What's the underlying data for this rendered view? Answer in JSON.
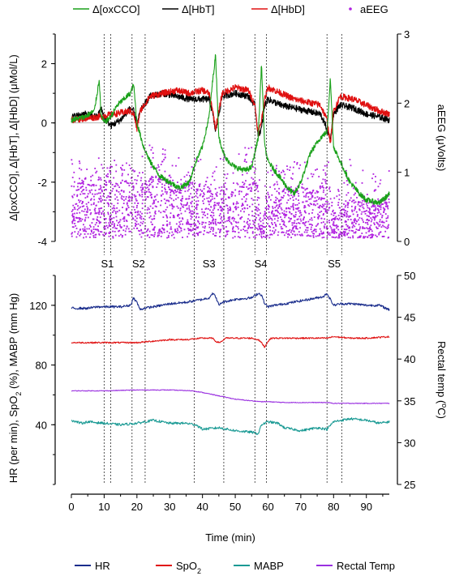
{
  "chart_data": [
    {
      "type": "line",
      "panel": "top",
      "ylabel": "Δ[oxCCO], Δ[HbT], Δ[HbD] (μMol/L)",
      "y2label": "aEEG (μVolts)",
      "ylim": [
        -4,
        3
      ],
      "yticks": [
        -4,
        -2,
        0,
        2
      ],
      "y2lim": [
        0,
        3
      ],
      "y2ticks": [
        0,
        1,
        2,
        3
      ],
      "xlim": [
        0,
        97
      ],
      "zero_line": true,
      "legend_position": "top",
      "legend": [
        {
          "label": "Δ[oxCCO]",
          "color": "#1aa11a",
          "marker": "line"
        },
        {
          "label": "Δ[HbT]",
          "color": "#000000",
          "marker": "line"
        },
        {
          "label": "Δ[HbD]",
          "color": "#e01010",
          "marker": "line"
        },
        {
          "label": "aEEG",
          "color": "#b020e0",
          "marker": "dot"
        }
      ],
      "series": [
        {
          "name": "Δ[oxCCO]",
          "color": "#1aa11a",
          "y_axis": "left",
          "x": [
            0,
            4,
            7,
            8,
            8.5,
            9,
            10,
            12,
            14,
            16,
            18,
            19,
            20,
            22,
            24,
            27,
            30,
            33,
            36,
            38,
            40,
            42,
            43,
            44,
            45,
            47,
            50,
            53,
            55,
            56,
            57,
            58,
            59,
            60,
            62,
            64,
            66,
            68,
            70,
            73,
            76,
            78,
            79,
            80,
            82,
            85,
            88,
            90,
            94,
            97
          ],
          "values": [
            0.1,
            0.2,
            0.4,
            1.1,
            1.5,
            0.3,
            0,
            0.2,
            0.6,
            0.8,
            1.0,
            1.3,
            0,
            -0.8,
            -1.3,
            -1.8,
            -2.0,
            -2.2,
            -2.0,
            -1.3,
            -0.8,
            0.2,
            1.3,
            2.3,
            -0.5,
            -1.2,
            -1.5,
            -1.6,
            -1.5,
            -1.0,
            -0.5,
            2.0,
            -0.8,
            -1.3,
            -1.6,
            -1.9,
            -2.2,
            -2.4,
            -2.0,
            -1.0,
            -0.5,
            -0.3,
            1.5,
            -0.8,
            -1.3,
            -2.0,
            -2.4,
            -2.6,
            -2.7,
            -2.4
          ]
        },
        {
          "name": "Δ[HbT]",
          "color": "#000000",
          "y_axis": "left",
          "x": [
            0,
            4,
            8,
            9,
            10,
            12,
            15,
            18,
            19,
            20,
            21,
            24,
            28,
            32,
            36,
            40,
            42,
            43,
            44,
            46,
            50,
            54,
            56,
            57,
            58,
            59,
            60,
            64,
            68,
            72,
            76,
            78,
            79,
            80,
            82,
            86,
            90,
            94,
            97
          ],
          "values": [
            0.2,
            0.3,
            0.2,
            0.5,
            0.2,
            -0.1,
            0.1,
            0.5,
            0.4,
            -0.1,
            0.4,
            0.9,
            1.0,
            0.9,
            0.8,
            0.8,
            0.8,
            0.4,
            -0.3,
            0.9,
            1.0,
            0.9,
            0.6,
            -0.4,
            -0.2,
            0.6,
            0.8,
            0.6,
            0.5,
            0.4,
            0.3,
            -0.2,
            -0.6,
            0.3,
            0.6,
            0.5,
            0.3,
            0.2,
            0.1
          ]
        },
        {
          "name": "Δ[HbD]",
          "color": "#e01010",
          "y_axis": "left",
          "x": [
            0,
            8,
            18,
            19,
            20,
            21,
            24,
            28,
            32,
            36,
            40,
            42,
            43,
            44,
            46,
            50,
            54,
            56,
            57,
            58,
            59,
            60,
            64,
            68,
            72,
            76,
            78,
            79,
            80,
            82,
            86,
            90,
            94,
            97
          ],
          "values": [
            0.1,
            0.2,
            0.4,
            0.3,
            -0.2,
            0.4,
            0.9,
            1.0,
            1.1,
            1.0,
            1.1,
            1.0,
            0.5,
            -0.2,
            1.0,
            1.2,
            1.1,
            0.6,
            -0.4,
            0.1,
            0.8,
            1.2,
            1.0,
            0.8,
            0.7,
            0.6,
            0.1,
            -0.7,
            0.4,
            0.9,
            0.8,
            0.6,
            0.4,
            0.3
          ]
        },
        {
          "name": "aEEG",
          "color": "#b020e0",
          "y_axis": "right",
          "style": "scatter",
          "band": {
            "x": [
              0,
              5,
              8,
              10,
              15,
              18,
              20,
              23,
              25,
              30,
              35,
              40,
              43,
              45,
              50,
              55,
              57,
              58,
              60,
              65,
              70,
              75,
              78,
              80,
              85,
              90,
              95,
              97
            ],
            "low": [
              0.05,
              0.05,
              0.05,
              0.05,
              0.05,
              0.1,
              0.05,
              0.05,
              0.05,
              0.05,
              0.05,
              0.1,
              0.1,
              0.05,
              0.05,
              0.05,
              0.05,
              0.05,
              0.05,
              0.05,
              0.05,
              0.05,
              0.05,
              0.05,
              0.05,
              0.05,
              0.05,
              0.05
            ],
            "high": [
              0.95,
              0.85,
              0.9,
              0.9,
              0.85,
              0.9,
              0.8,
              0.9,
              0.95,
              0.9,
              0.85,
              0.85,
              0.7,
              0.8,
              0.85,
              0.9,
              0.85,
              0.2,
              0.7,
              0.8,
              0.8,
              0.75,
              0.9,
              0.4,
              0.7,
              0.6,
              0.6,
              0.7
            ],
            "max": [
              1.3,
              1.1,
              1.2,
              1.3,
              1.1,
              1.2,
              1.0,
              1.5,
              1.4,
              1.3,
              1.2,
              1.3,
              1.0,
              1.2,
              1.3,
              1.4,
              1.3,
              0.5,
              1.1,
              1.1,
              1.2,
              1.1,
              1.3,
              0.6,
              1.2,
              1.0,
              1.0,
              1.1
            ]
          }
        }
      ]
    },
    {
      "type": "line",
      "panel": "bottom",
      "xlabel": "Time (min)",
      "xlim": [
        0,
        97
      ],
      "xticks": [
        0,
        10,
        20,
        30,
        40,
        50,
        60,
        70,
        80,
        90
      ],
      "ylabel_parts": [
        "HR (per min), SpO",
        "2",
        " (%), MABP (mm Hg)"
      ],
      "ylim": [
        0,
        140
      ],
      "yticks": [
        40,
        80,
        120
      ],
      "y2label_parts": [
        "Rectal temp (",
        "o",
        "C)"
      ],
      "y2lim": [
        25,
        50
      ],
      "y2ticks": [
        25,
        30,
        35,
        40,
        45,
        50
      ],
      "legend_position": "bottom",
      "legend": [
        {
          "label": "HR",
          "sub": "",
          "color": "#1a2d8c"
        },
        {
          "label": "SpO",
          "sub": "2",
          "color": "#e01010"
        },
        {
          "label": "MABP",
          "sub": "",
          "color": "#1a9a94"
        },
        {
          "label": "Rectal Temp",
          "sub": "",
          "color": "#9a30e0"
        }
      ],
      "series": [
        {
          "name": "HR",
          "color": "#1a2d8c",
          "y_axis": "left",
          "x": [
            0,
            5,
            8,
            10,
            15,
            18,
            19,
            20,
            21,
            22,
            25,
            30,
            35,
            40,
            42,
            43,
            44,
            45,
            46,
            48,
            50,
            55,
            57,
            58,
            59,
            60,
            62,
            65,
            70,
            75,
            77,
            78,
            79,
            80,
            82,
            86,
            90,
            94,
            97
          ],
          "values": [
            118,
            118,
            119,
            119,
            119,
            120,
            125,
            122,
            117,
            118,
            119,
            121,
            122,
            124,
            125,
            128,
            126,
            120,
            122,
            123,
            124,
            125,
            128,
            127,
            121,
            119,
            120,
            121,
            123,
            125,
            126,
            128,
            124,
            120,
            121,
            121,
            120,
            120,
            117
          ]
        },
        {
          "name": "SpO2",
          "color": "#e01010",
          "y_axis": "left",
          "x": [
            0,
            10,
            20,
            25,
            30,
            35,
            40,
            43,
            44,
            45,
            46,
            47,
            50,
            55,
            57,
            58,
            59,
            60,
            61,
            62,
            65,
            70,
            78,
            80,
            85,
            90,
            97
          ],
          "values": [
            95,
            95,
            95,
            96,
            97,
            97,
            98,
            98,
            96,
            95,
            96,
            98,
            98,
            98,
            97,
            95,
            92,
            96,
            98,
            98,
            98,
            98,
            98,
            99,
            98,
            98,
            99
          ]
        },
        {
          "name": "MABP",
          "color": "#1a9a94",
          "y_axis": "left",
          "x": [
            0,
            3,
            5,
            10,
            15,
            20,
            25,
            30,
            35,
            38,
            40,
            45,
            50,
            55,
            57,
            58,
            60,
            63,
            65,
            70,
            75,
            78,
            80,
            85,
            90,
            94,
            97
          ],
          "values": [
            43,
            41,
            42,
            41,
            40,
            41,
            43,
            41,
            41,
            40,
            37,
            38,
            36,
            35,
            34,
            40,
            42,
            41,
            38,
            36,
            38,
            37,
            42,
            44,
            43,
            41,
            42
          ]
        },
        {
          "name": "Rectal Temp",
          "color": "#9a30e0",
          "y_axis": "right",
          "x": [
            0,
            10,
            20,
            30,
            37,
            40,
            45,
            50,
            55,
            58,
            60,
            65,
            70,
            78,
            80,
            90,
            97
          ],
          "values": [
            36.2,
            36.2,
            36.3,
            36.3,
            36.2,
            36.0,
            35.6,
            35.2,
            35.0,
            34.9,
            34.9,
            34.8,
            34.8,
            34.8,
            34.7,
            34.7,
            34.7
          ]
        }
      ]
    }
  ],
  "stimulations": {
    "x": [
      10,
      12,
      18.5,
      22.5,
      37.5,
      46.5,
      56,
      59.5,
      78,
      82.5
    ],
    "labels": [
      {
        "text": "S1",
        "x": 11
      },
      {
        "text": "S2",
        "x": 20.5
      },
      {
        "text": "S3",
        "x": 42
      },
      {
        "text": "S4",
        "x": 57.8
      },
      {
        "text": "S5",
        "x": 80.2
      }
    ]
  }
}
